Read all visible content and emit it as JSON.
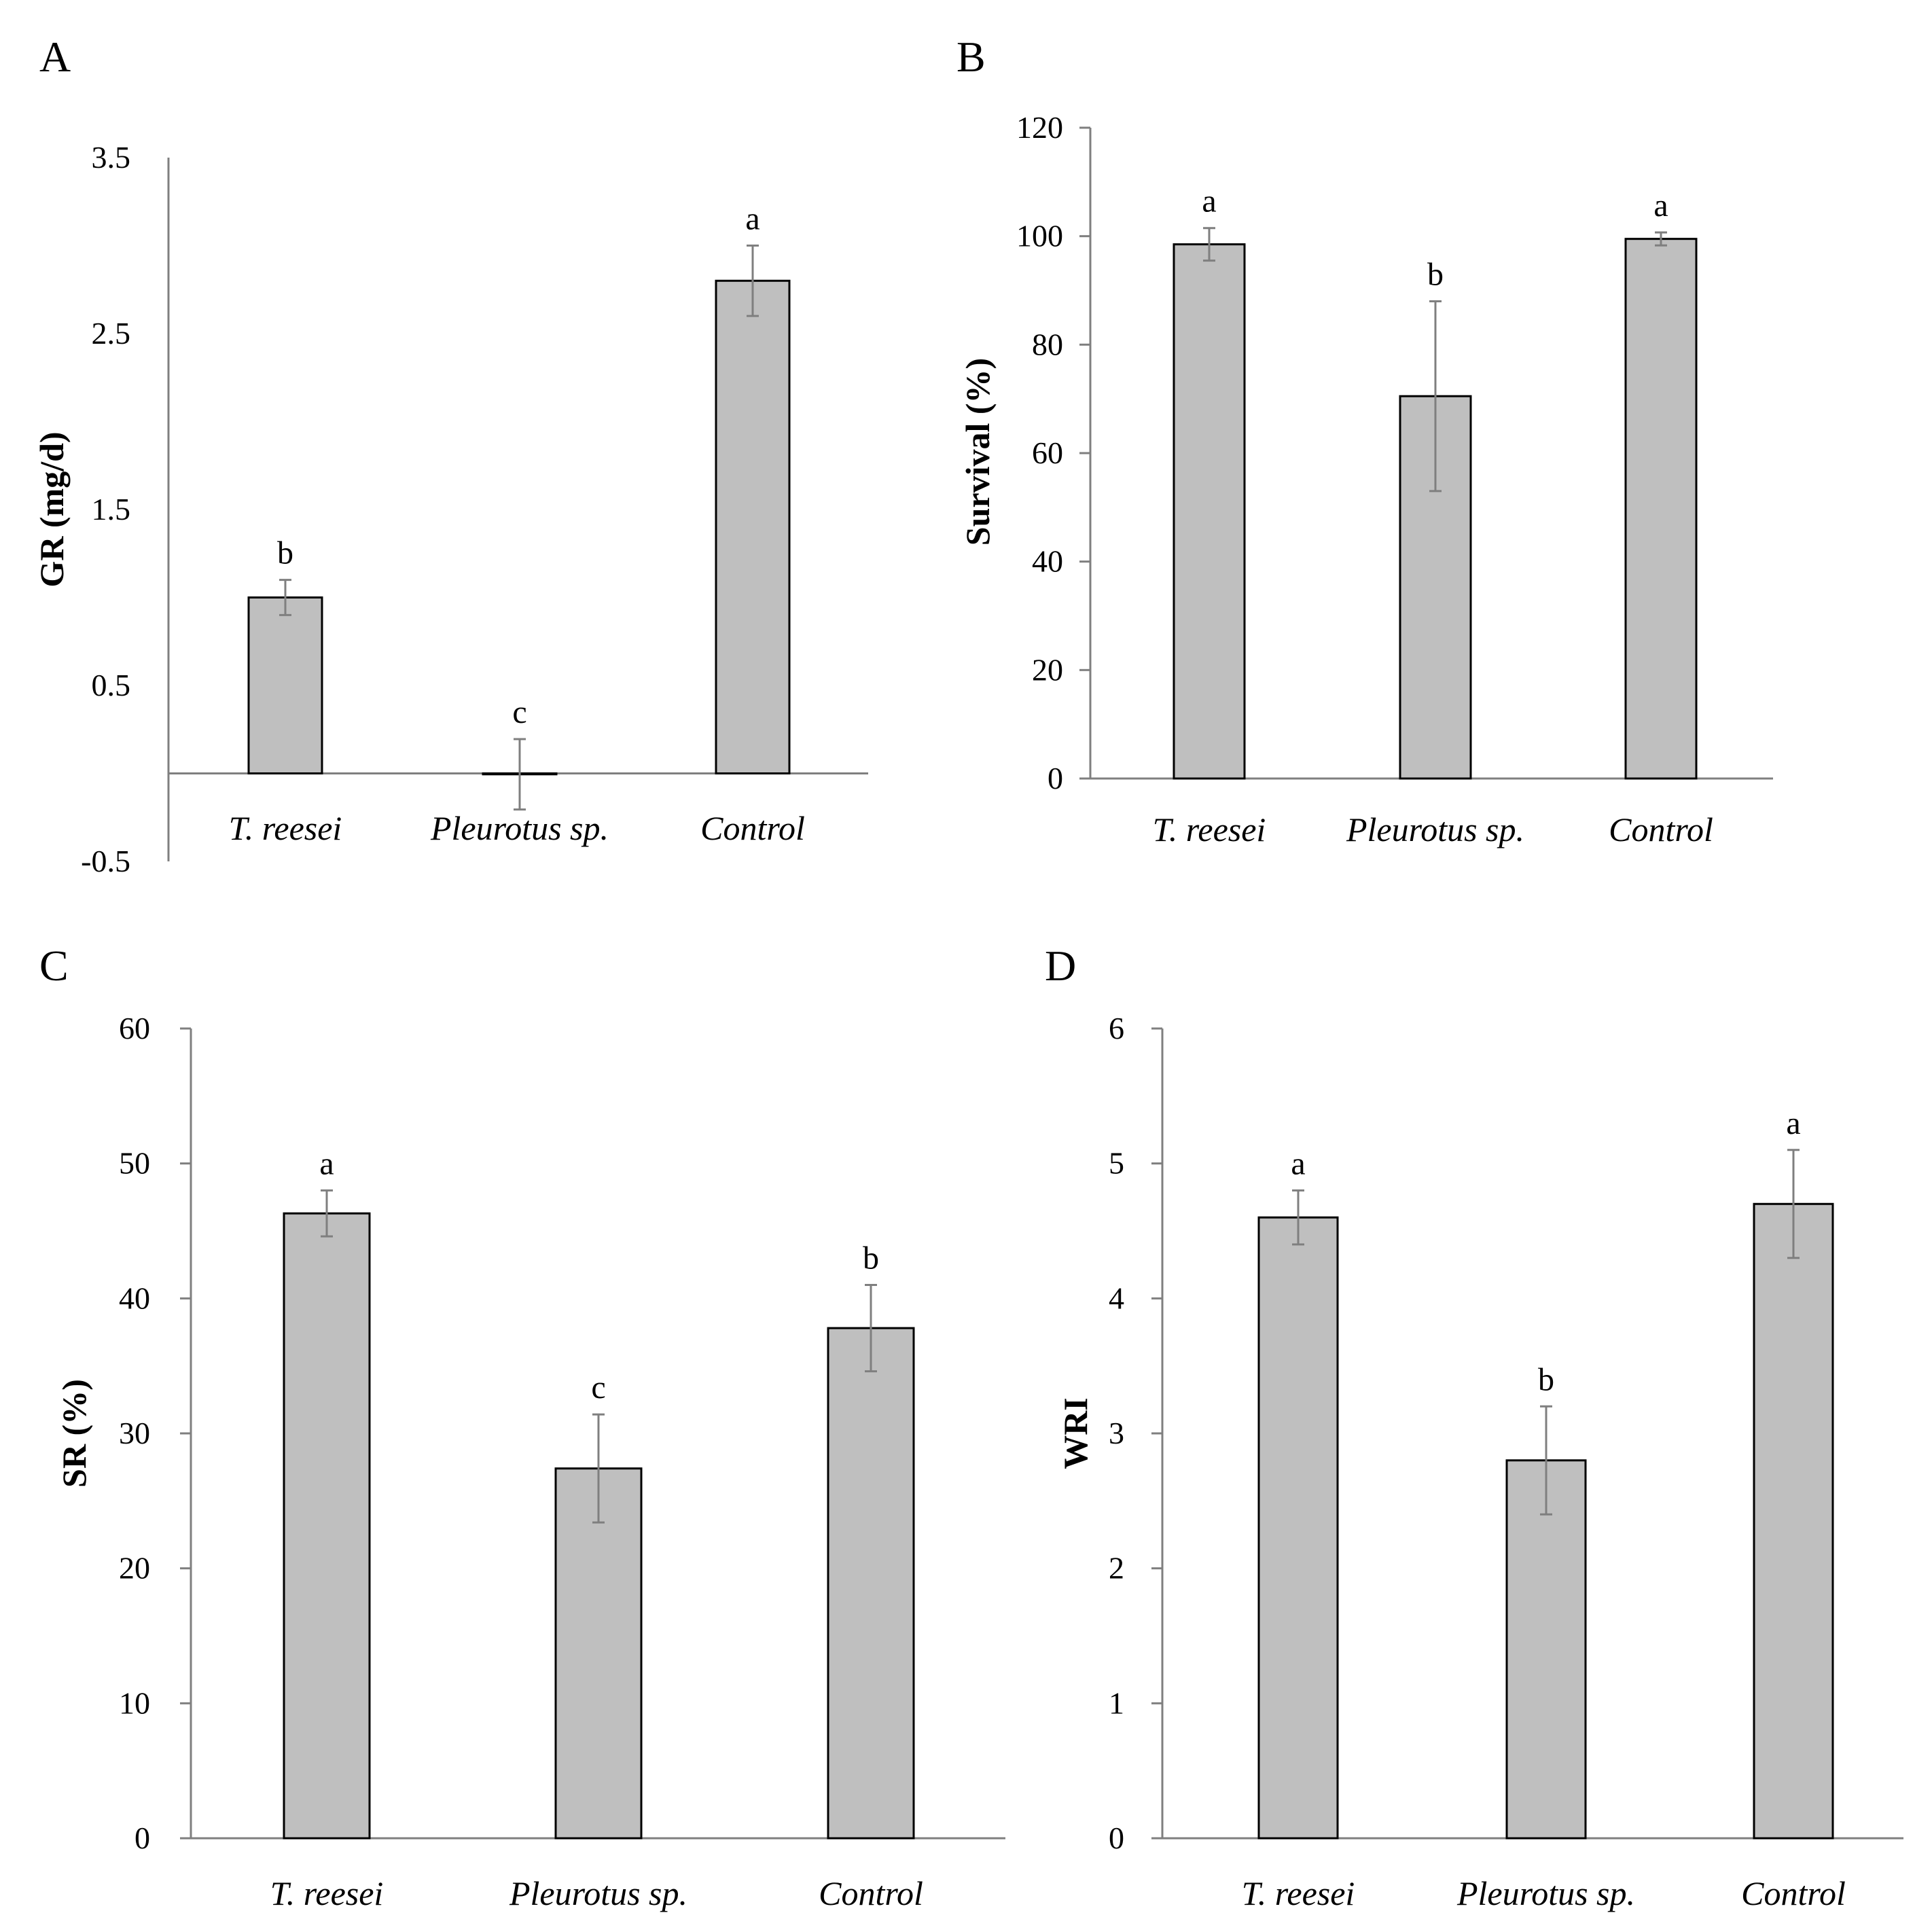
{
  "figure": {
    "bar_color": "#bfbfbf",
    "bar_edge_color": "#000000",
    "axis_color": "#7f7f7f",
    "error_bar_color": "#7f7f7f"
  },
  "chart_data": [
    {
      "panel": "A",
      "type": "bar",
      "categories": [
        "T. reesei",
        "Pleurotus sp.",
        "Control"
      ],
      "values": [
        1.0,
        -0.005,
        2.8
      ],
      "errors": [
        0.1,
        0.2,
        0.2
      ],
      "significance": [
        "b",
        "c",
        "a"
      ],
      "ylabel": "GR (mg/d)",
      "xlabel": "",
      "ylim": [
        -0.5,
        3.5
      ],
      "yticks": [
        -0.5,
        0.5,
        1.5,
        2.5,
        3.5
      ],
      "ytick_labels": [
        "-0.5",
        "0.5",
        "1.5",
        "2.5",
        "3.5"
      ],
      "xaxis_at": 0,
      "y_tick_marks": false,
      "grid": false
    },
    {
      "panel": "B",
      "type": "bar",
      "categories": [
        "T. reesei",
        "Pleurotus sp.",
        "Control"
      ],
      "values": [
        98.5,
        70.5,
        99.5
      ],
      "errors": [
        3,
        17.5,
        1.2
      ],
      "significance": [
        "a",
        "b",
        "a"
      ],
      "ylabel": "Survival (%)",
      "xlabel": "",
      "ylim": [
        0,
        120
      ],
      "yticks": [
        0,
        20,
        40,
        60,
        80,
        100,
        120
      ],
      "ytick_labels": [
        "0",
        "20",
        "40",
        "60",
        "80",
        "100",
        "120"
      ],
      "xaxis_at": 0,
      "y_tick_marks": true,
      "grid": false
    },
    {
      "panel": "C",
      "type": "bar",
      "categories": [
        "T. reesei",
        "Pleurotus sp.",
        "Control"
      ],
      "values": [
        46.3,
        27.4,
        37.8
      ],
      "errors": [
        1.7,
        4.0,
        3.2
      ],
      "significance": [
        "a",
        "c",
        "b"
      ],
      "ylabel": "SR (%)",
      "xlabel": "",
      "ylim": [
        0,
        60
      ],
      "yticks": [
        0,
        10,
        20,
        30,
        40,
        50,
        60
      ],
      "ytick_labels": [
        "0",
        "10",
        "20",
        "30",
        "40",
        "50",
        "60"
      ],
      "xaxis_at": 0,
      "y_tick_marks": true,
      "grid": false
    },
    {
      "panel": "D",
      "type": "bar",
      "categories": [
        "T. reesei",
        "Pleurotus sp.",
        "Control"
      ],
      "values": [
        4.6,
        2.8,
        4.7
      ],
      "errors": [
        0.2,
        0.4,
        0.4
      ],
      "significance": [
        "a",
        "b",
        "a"
      ],
      "ylabel": "WRI",
      "xlabel": "",
      "ylim": [
        0,
        6
      ],
      "yticks": [
        0,
        1,
        2,
        3,
        4,
        5,
        6
      ],
      "ytick_labels": [
        "0",
        "1",
        "2",
        "3",
        "4",
        "5",
        "6"
      ],
      "xaxis_at": 0,
      "y_tick_marks": true,
      "grid": false
    }
  ]
}
